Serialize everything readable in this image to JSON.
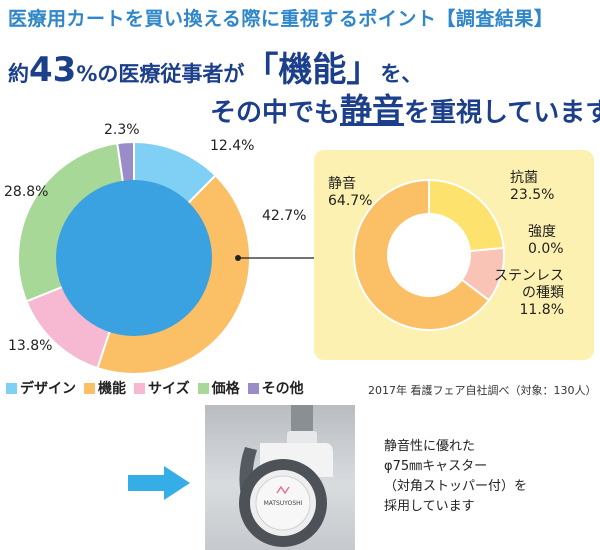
{
  "title": "医療用カートを買い換える際に重視するポイント【調査結果】",
  "headline": {
    "line1_prefix": "約",
    "line1_percent": "43",
    "line1_unit": "%",
    "line1_mid": "の医療従事者が",
    "line1_bracket_open": "「",
    "line1_emphasis": "機能",
    "line1_bracket_close": "」",
    "line1_suffix": "を、",
    "line2_prefix": "その中でも",
    "line2_emphasis": "静音",
    "line2_suffix": "を重視しています"
  },
  "chart_data": [
    {
      "type": "pie",
      "subtype": "donut",
      "slices": [
        {
          "name": "デザイン",
          "value": 12.4,
          "label": "12.4%",
          "color": "#7fd0f4"
        },
        {
          "name": "機能",
          "value": 42.7,
          "label": "42.7%",
          "color": "#fbbf66"
        },
        {
          "name": "サイズ",
          "value": 13.8,
          "label": "13.8%",
          "color": "#f7b8d2"
        },
        {
          "name": "価格",
          "value": 28.8,
          "label": "28.8%",
          "color": "#a8d898"
        },
        {
          "name": "その他",
          "value": 2.3,
          "label": "2.3%",
          "color": "#9a8bc9"
        }
      ],
      "center_color": "#3aa2e0",
      "legend": "bottom"
    },
    {
      "type": "pie",
      "subtype": "donut",
      "slices": [
        {
          "name": "静音",
          "value": 64.7,
          "label": "64.7%",
          "color": "#fbbf66"
        },
        {
          "name": "抗菌",
          "value": 23.5,
          "label": "23.5%",
          "color": "#fde36d"
        },
        {
          "name": "強度",
          "value": 0.0,
          "label": "0.0%",
          "color": "#d9e88a"
        },
        {
          "name": "ステンレスの種類",
          "name_lines": [
            "ステンレス",
            "の種類"
          ],
          "value": 11.8,
          "label": "11.8%",
          "color": "#f9c3b6"
        }
      ]
    }
  ],
  "source": "2017年 看護フェア自社調べ（対象：130人）",
  "caster_photo": {
    "brand": "MATSUYOSHI"
  },
  "caster_caption": {
    "lines": [
      "静音性に優れた",
      "φ75㎜キャスター",
      "（対角ストッパー付）を",
      "採用しています"
    ]
  },
  "colors": {
    "title": "#2f86c8",
    "headline": "#1c3f8c",
    "arrow": "#35aee8",
    "detail_bg": "#fcf1b0"
  }
}
